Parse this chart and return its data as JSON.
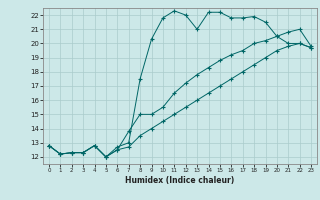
{
  "title": "",
  "xlabel": "Humidex (Indice chaleur)",
  "ylabel": "",
  "background_color": "#cce8e8",
  "grid_color": "#aacccc",
  "line_color": "#006666",
  "xlim": [
    -0.5,
    23.5
  ],
  "ylim": [
    11.5,
    22.5
  ],
  "xticks": [
    0,
    1,
    2,
    3,
    4,
    5,
    6,
    7,
    8,
    9,
    10,
    11,
    12,
    13,
    14,
    15,
    16,
    17,
    18,
    19,
    20,
    21,
    22,
    23
  ],
  "yticks": [
    12,
    13,
    14,
    15,
    16,
    17,
    18,
    19,
    20,
    21,
    22
  ],
  "line1_x": [
    0,
    1,
    2,
    3,
    4,
    5,
    6,
    7,
    8,
    9,
    10,
    11,
    12,
    13,
    14,
    15,
    16,
    17,
    18,
    19,
    20,
    21,
    22,
    23
  ],
  "line1_y": [
    12.8,
    12.2,
    12.3,
    12.3,
    12.8,
    12.0,
    12.7,
    13.0,
    17.5,
    20.3,
    21.8,
    22.3,
    22.0,
    21.0,
    22.2,
    22.2,
    21.8,
    21.8,
    21.9,
    21.5,
    20.5,
    20.0,
    20.0,
    19.7
  ],
  "line2_x": [
    0,
    1,
    2,
    3,
    4,
    5,
    6,
    7,
    8,
    9,
    10,
    11,
    12,
    13,
    14,
    15,
    16,
    17,
    18,
    19,
    20,
    21,
    22,
    23
  ],
  "line2_y": [
    12.8,
    12.2,
    12.3,
    12.3,
    12.8,
    12.0,
    12.5,
    13.8,
    15.0,
    15.0,
    15.5,
    16.5,
    17.2,
    17.8,
    18.3,
    18.8,
    19.2,
    19.5,
    20.0,
    20.2,
    20.5,
    20.8,
    21.0,
    19.8
  ],
  "line3_x": [
    0,
    1,
    2,
    3,
    4,
    5,
    6,
    7,
    8,
    9,
    10,
    11,
    12,
    13,
    14,
    15,
    16,
    17,
    18,
    19,
    20,
    21,
    22,
    23
  ],
  "line3_y": [
    12.8,
    12.2,
    12.3,
    12.3,
    12.8,
    12.0,
    12.5,
    12.7,
    13.5,
    14.0,
    14.5,
    15.0,
    15.5,
    16.0,
    16.5,
    17.0,
    17.5,
    18.0,
    18.5,
    19.0,
    19.5,
    19.8,
    20.0,
    19.7
  ]
}
